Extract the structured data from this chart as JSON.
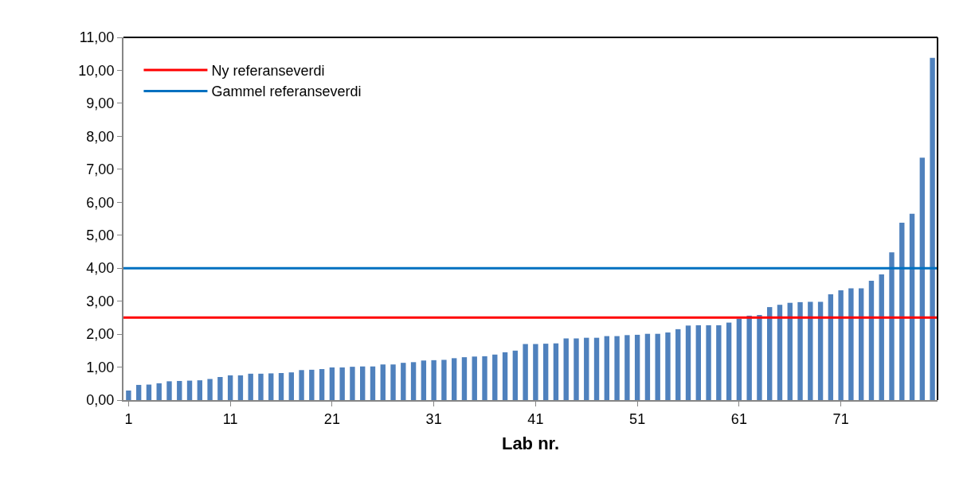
{
  "chart_data": {
    "type": "bar",
    "xlabel": "Lab nr.",
    "categories": [
      "1",
      null,
      null,
      null,
      null,
      null,
      null,
      null,
      null,
      null,
      "11",
      null,
      null,
      null,
      null,
      null,
      null,
      null,
      null,
      null,
      "21",
      null,
      null,
      null,
      null,
      null,
      null,
      null,
      null,
      null,
      "31",
      null,
      null,
      null,
      null,
      null,
      null,
      null,
      null,
      null,
      "41",
      null,
      null,
      null,
      null,
      null,
      null,
      null,
      null,
      null,
      "51",
      null,
      null,
      null,
      null,
      null,
      null,
      null,
      null,
      null,
      "61",
      null,
      null,
      null,
      null,
      null,
      null,
      null,
      null,
      null,
      "71",
      null,
      null,
      null,
      null,
      null,
      null,
      null,
      null,
      null
    ],
    "series": [
      {
        "color": "#4f81bd",
        "values": [
          0.29,
          0.46,
          0.47,
          0.51,
          0.57,
          0.58,
          0.59,
          0.6,
          0.64,
          0.7,
          0.75,
          0.75,
          0.8,
          0.8,
          0.81,
          0.82,
          0.84,
          0.91,
          0.92,
          0.94,
          0.99,
          0.99,
          1.01,
          1.02,
          1.02,
          1.08,
          1.08,
          1.13,
          1.15,
          1.2,
          1.21,
          1.22,
          1.27,
          1.3,
          1.32,
          1.33,
          1.38,
          1.45,
          1.5,
          1.7,
          1.7,
          1.71,
          1.72,
          1.87,
          1.87,
          1.89,
          1.89,
          1.94,
          1.94,
          1.97,
          1.98,
          2.01,
          2.01,
          2.05,
          2.15,
          2.26,
          2.27,
          2.27,
          2.27,
          2.35,
          2.47,
          2.56,
          2.58,
          2.82,
          2.89,
          2.95,
          2.97,
          2.98,
          2.98,
          3.21,
          3.33,
          3.39,
          3.39,
          3.62,
          3.81,
          4.48,
          5.38,
          5.65,
          7.35,
          10.38
        ]
      }
    ],
    "ylim": [
      0,
      11
    ],
    "yticks": [
      {
        "value": 0,
        "label": "0,00"
      },
      {
        "value": 1,
        "label": "1,00"
      },
      {
        "value": 2,
        "label": "2,00"
      },
      {
        "value": 3,
        "label": "3,00"
      },
      {
        "value": 4,
        "label": "4,00"
      },
      {
        "value": 5,
        "label": "5,00"
      },
      {
        "value": 6,
        "label": "6,00"
      },
      {
        "value": 7,
        "label": "7,00"
      },
      {
        "value": 8,
        "label": "8,00"
      },
      {
        "value": 9,
        "label": "9,00"
      },
      {
        "value": 10,
        "label": "10,00"
      },
      {
        "value": 11,
        "label": "11,00"
      }
    ],
    "ref_lines": [
      {
        "axis": "y",
        "value": 2.5,
        "label": "Ny referanseverdi",
        "color": "#ff0000"
      },
      {
        "axis": "y",
        "value": 4,
        "label": "Gammel referanseverdi",
        "color": "#0070c0"
      }
    ],
    "grid": false,
    "legend": "top left"
  }
}
